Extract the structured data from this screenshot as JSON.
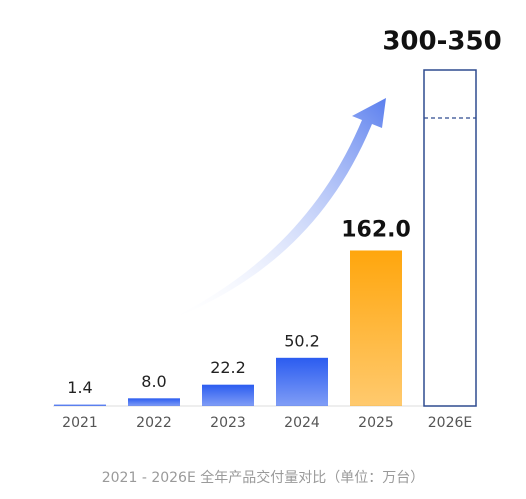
{
  "chart_data": {
    "type": "bar",
    "caption": "2021 - 2026E 全年产品交付量对比（单位：万台）",
    "categories": [
      "2021",
      "2022",
      "2023",
      "2024",
      "2025",
      "2026E"
    ],
    "values": [
      1.4,
      8,
      22.2,
      50.2,
      162,
      null
    ],
    "value_labels": [
      "1.4",
      "8.0",
      "22.2",
      "50.2",
      "162.0",
      null
    ],
    "colors": [
      "#2b5cf0",
      "#2b5cf0",
      "#2b5cf0",
      "#2b5cf0",
      "#ffa60d",
      "#2f4b8f"
    ],
    "forecast": {
      "low": 300,
      "high": 350,
      "label": "300-350"
    },
    "ylim": [
      0,
      350
    ]
  }
}
